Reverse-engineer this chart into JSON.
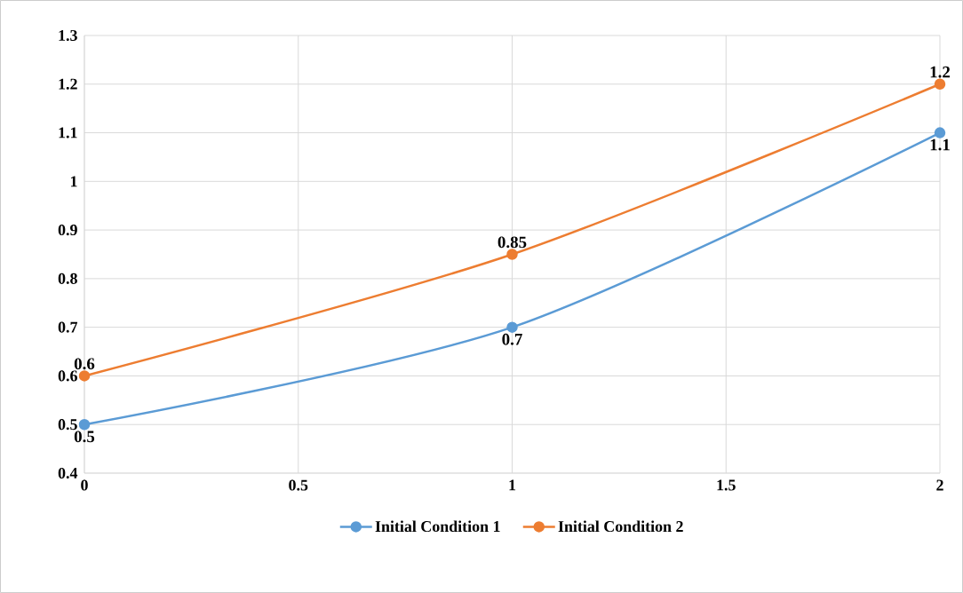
{
  "chart_data": {
    "type": "line",
    "x": [
      0,
      1,
      2
    ],
    "series": [
      {
        "name": "Initial Condition 1",
        "color": "#5b9bd5",
        "values": [
          0.5,
          0.7,
          1.1
        ]
      },
      {
        "name": "Initial Condition 2",
        "color": "#ed7d31",
        "values": [
          0.6,
          0.85,
          1.2
        ]
      }
    ],
    "xlim": [
      0,
      2
    ],
    "xticks": [
      0,
      0.5,
      1,
      1.5,
      2
    ],
    "ylim": [
      0.4,
      1.3
    ],
    "yticks": [
      0.4,
      0.5,
      0.6,
      0.7,
      0.8,
      0.9,
      1,
      1.1,
      1.2,
      1.3
    ],
    "grid": true,
    "legend": "bottom",
    "marker": "circle",
    "line_style": "solid",
    "data_labels": true
  }
}
